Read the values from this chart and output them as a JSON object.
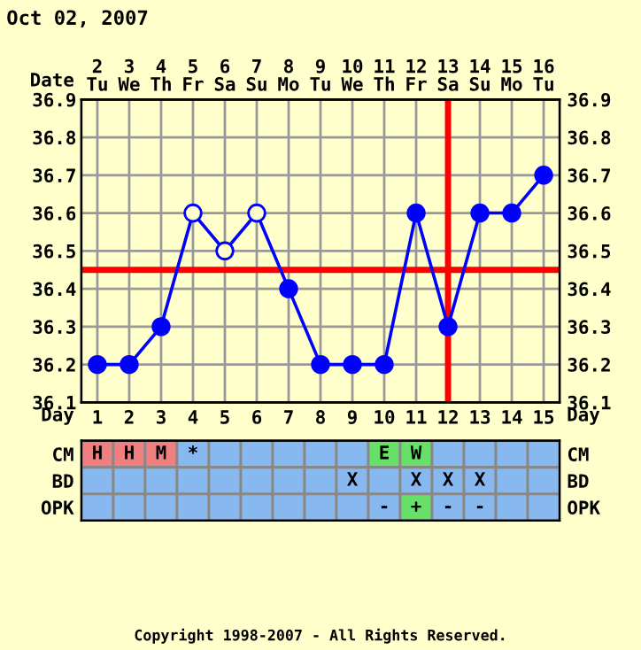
{
  "chart_data": [
    {
      "type": "line",
      "title": "Oct 02, 2007",
      "xlabel": "Date",
      "x2label": "Day",
      "x": [
        "2007-10-02",
        "2007-10-03",
        "2007-10-04",
        "2007-10-05",
        "2007-10-06",
        "2007-10-07",
        "2007-10-08",
        "2007-10-09",
        "2007-10-10",
        "2007-10-11",
        "2007-10-12",
        "2007-10-13",
        "2007-10-14",
        "2007-10-15",
        "2007-10-16"
      ],
      "xlim": [
        "2007-10-01T12:00",
        "2007-10-16T12:00"
      ],
      "xticks": [
        {
          "value": "2007-10-02",
          "label": "2\nTu"
        },
        {
          "value": "2007-10-03",
          "label": "3\nWe"
        },
        {
          "value": "2007-10-04",
          "label": "4\nTh"
        },
        {
          "value": "2007-10-05",
          "label": "5\nFr"
        },
        {
          "value": "2007-10-06",
          "label": "6\nSa"
        },
        {
          "value": "2007-10-07",
          "label": "7\nSu"
        },
        {
          "value": "2007-10-08",
          "label": "8\nMo"
        },
        {
          "value": "2007-10-09",
          "label": "9\nTu"
        },
        {
          "value": "2007-10-10",
          "label": "10\nWe"
        },
        {
          "value": "2007-10-11",
          "label": "11\nTh"
        },
        {
          "value": "2007-10-12",
          "label": "12\nFr"
        },
        {
          "value": "2007-10-13",
          "label": "13\nSa"
        },
        {
          "value": "2007-10-14",
          "label": "14\nSu"
        },
        {
          "value": "2007-10-15",
          "label": "15\nMo"
        },
        {
          "value": "2007-10-16",
          "label": "16\nTu"
        }
      ],
      "x2lim": [
        0.5,
        15.5
      ],
      "x2ticks": [
        1,
        2,
        3,
        4,
        5,
        6,
        7,
        8,
        9,
        10,
        11,
        12,
        13,
        14,
        15
      ],
      "ylim": [
        36.1,
        36.9
      ],
      "yticks": [
        36.1,
        36.2,
        36.3,
        36.4,
        36.5,
        36.6,
        36.7,
        36.8,
        36.9
      ],
      "y2lim": [
        36.1,
        36.9
      ],
      "y2ticks": [
        36.1,
        36.2,
        36.3,
        36.4,
        36.5,
        36.6,
        36.7,
        36.8,
        36.9
      ],
      "grid": true,
      "line_style": "solid",
      "series": [
        {
          "type": "line",
          "color": "#0000ff",
          "values": [
            36.2,
            36.2,
            36.3,
            36.6,
            36.5,
            36.6,
            36.4,
            36.2,
            36.2,
            36.2,
            36.6,
            36.3,
            36.6,
            36.6,
            36.7
          ]
        },
        {
          "type": "scatter",
          "marker": "circle",
          "color": "#0000ff",
          "values": [
            36.2,
            36.2,
            36.3,
            null,
            null,
            null,
            36.4,
            36.2,
            36.2,
            36.2,
            36.6,
            36.3,
            36.6,
            36.6,
            36.7
          ]
        },
        {
          "type": "scatter",
          "marker": "circle",
          "color": "#ffffcc",
          "values": [
            null,
            null,
            null,
            36.6,
            36.5,
            36.6,
            null,
            null,
            null,
            null,
            null,
            null,
            null,
            null,
            null
          ]
        }
      ],
      "ref_lines": [
        {
          "axis": "y",
          "value": 36.45,
          "color": "#ff0000"
        },
        {
          "axis": "x",
          "value": "2007-10-13",
          "color": "#ff0000"
        }
      ]
    },
    {
      "type": "heatmap",
      "categories": [
        null,
        null,
        null,
        null,
        null,
        null,
        null,
        null,
        null,
        null,
        null,
        null,
        null,
        null,
        null
      ],
      "y_categories": [
        "CM",
        "BD",
        "OPK"
      ],
      "y2_categories": [
        "CM",
        "BD",
        "OPK"
      ],
      "tick_labels": "y",
      "cells": [
        [
          null,
          null,
          null,
          null,
          null,
          null,
          null,
          null,
          null,
          null,
          null,
          null,
          null,
          null,
          null
        ],
        [
          null,
          null,
          null,
          null,
          null,
          null,
          null,
          null,
          null,
          null,
          null,
          null,
          null,
          null,
          null
        ],
        [
          null,
          null,
          null,
          null,
          null,
          null,
          null,
          null,
          null,
          null,
          null,
          null,
          null,
          null,
          null
        ]
      ],
      "cell_labels": [
        [
          "H",
          "H",
          "M",
          "*",
          null,
          null,
          null,
          null,
          null,
          "E",
          "W",
          null,
          null,
          null,
          null
        ],
        [
          null,
          null,
          null,
          null,
          null,
          null,
          null,
          null,
          "X",
          null,
          "X",
          "X",
          "X",
          null,
          null
        ],
        [
          null,
          null,
          null,
          null,
          null,
          null,
          null,
          null,
          null,
          "-",
          "+",
          "-",
          "-",
          null,
          null
        ]
      ],
      "colors": [
        [
          "#f08080",
          "#f08080",
          "#f08080",
          "#88b8f0",
          "#88b8f0",
          "#88b8f0",
          "#88b8f0",
          "#88b8f0",
          "#88b8f0",
          "#66e066",
          "#66e066",
          "#88b8f0",
          "#88b8f0",
          "#88b8f0",
          "#88b8f0"
        ],
        [
          "#88b8f0",
          "#88b8f0",
          "#88b8f0",
          "#88b8f0",
          "#88b8f0",
          "#88b8f0",
          "#88b8f0",
          "#88b8f0",
          "#88b8f0",
          "#88b8f0",
          "#88b8f0",
          "#88b8f0",
          "#88b8f0",
          "#88b8f0",
          "#88b8f0"
        ],
        [
          "#88b8f0",
          "#88b8f0",
          "#88b8f0",
          "#88b8f0",
          "#88b8f0",
          "#88b8f0",
          "#88b8f0",
          "#88b8f0",
          "#88b8f0",
          "#88b8f0",
          "#66e066",
          "#88b8f0",
          "#88b8f0",
          "#88b8f0",
          "#88b8f0"
        ]
      ],
      "annotations": [
        "Copyright 1998-2007 - All Rights Reserved."
      ]
    }
  ]
}
